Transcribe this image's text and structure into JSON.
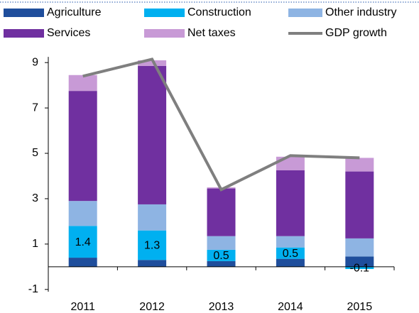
{
  "chart_data": {
    "type": "stacked_bar_line",
    "categories": [
      "2011",
      "2012",
      "2013",
      "2014",
      "2015"
    ],
    "series": [
      {
        "name": "Agriculture",
        "color": "#1f4e9c",
        "values": [
          0.4,
          0.3,
          0.25,
          0.35,
          0.45
        ]
      },
      {
        "name": "Construction",
        "color": "#00b0f0",
        "values": [
          1.4,
          1.3,
          0.5,
          0.5,
          -0.1
        ],
        "data_labels": true
      },
      {
        "name": "Other industry",
        "color": "#8eb4e3",
        "values": [
          1.1,
          1.15,
          0.6,
          0.5,
          0.8
        ]
      },
      {
        "name": "Services",
        "color": "#7030a0",
        "values": [
          4.85,
          6.1,
          2.1,
          2.9,
          2.95
        ]
      },
      {
        "name": "Net taxes",
        "color": "#c89ad6",
        "values": [
          0.7,
          0.25,
          0.05,
          0.6,
          0.6
        ]
      },
      {
        "name": "GDP growth",
        "color": "#7f7f7f",
        "type": "line",
        "values": [
          8.4,
          9.15,
          3.4,
          4.9,
          4.8
        ]
      }
    ],
    "ylim": [
      -1.1,
      9.6
    ],
    "yticks": [
      9,
      7,
      5,
      3,
      1,
      -1
    ],
    "grid": false
  }
}
